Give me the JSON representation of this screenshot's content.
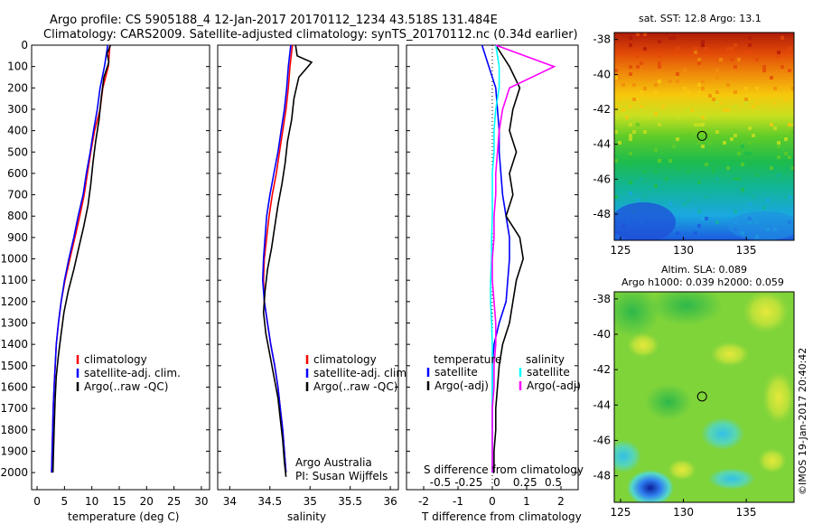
{
  "header": {
    "line1": "Argo profile: CS 5905188_4 12-Jan-2017 20170112_1234 43.518S 131.484E",
    "line2": "Climatology: CARS2009. Satellite-adjusted climatology: synTS_20170112.nc (0.34d earlier)"
  },
  "colors": {
    "climatology": "#ff0000",
    "satellite": "#0000ff",
    "argo": "#000000",
    "t_sat": "#0000ff",
    "s_sat": "#00ffff",
    "s_argo": "#ff00ff"
  },
  "chart_data": [
    {
      "type": "line",
      "panel": "temperature",
      "xlabel": "temperature (deg C)",
      "ylabel": "",
      "xlim": [
        -1,
        31.5
      ],
      "ylim": [
        2080,
        0
      ],
      "xticks": [
        0,
        5,
        10,
        15,
        20,
        25,
        30
      ],
      "yticks": [
        0,
        100,
        200,
        300,
        400,
        500,
        600,
        700,
        800,
        900,
        1000,
        1100,
        1200,
        1300,
        1400,
        1500,
        1600,
        1700,
        1800,
        1900,
        2000
      ],
      "series": [
        {
          "name": "climatology",
          "color": "#ff0000",
          "x": [
            13.3,
            13.0,
            12.0,
            11.5,
            10.5,
            9.8,
            9.2,
            8.6,
            7.8,
            6.9,
            6.0,
            5.1,
            4.4,
            3.9,
            3.5,
            3.3,
            3.1,
            2.95,
            2.85,
            2.75,
            2.65
          ],
          "y": [
            0,
            100,
            200,
            300,
            400,
            500,
            600,
            700,
            800,
            900,
            1000,
            1100,
            1200,
            1300,
            1400,
            1500,
            1600,
            1700,
            1800,
            1900,
            2000
          ]
        },
        {
          "name": "satellite-adj. clim.",
          "color": "#0000ff",
          "x": [
            12.9,
            12.3,
            11.5,
            11.0,
            10.3,
            9.7,
            9.0,
            8.4,
            7.5,
            6.7,
            5.8,
            5.0,
            4.4,
            3.9,
            3.5,
            3.3,
            3.1,
            2.95,
            2.85,
            2.75,
            2.65
          ],
          "y": [
            0,
            100,
            200,
            300,
            400,
            500,
            600,
            700,
            800,
            900,
            1000,
            1100,
            1200,
            1300,
            1400,
            1500,
            1600,
            1700,
            1800,
            1900,
            2000
          ]
        },
        {
          "name": "Argo(..raw -QC)",
          "color": "#000000",
          "x": [
            13.4,
            12.8,
            13.1,
            12.2,
            11.7,
            11.3,
            10.7,
            10.2,
            9.8,
            9.3,
            8.5,
            7.6,
            6.7,
            5.7,
            4.9,
            4.4,
            3.9,
            3.5,
            3.3,
            3.1,
            2.9
          ],
          "y": [
            0,
            40,
            80,
            150,
            250,
            350,
            450,
            550,
            650,
            750,
            850,
            950,
            1050,
            1150,
            1250,
            1350,
            1450,
            1550,
            1650,
            1800,
            2000
          ]
        }
      ],
      "legend": [
        "climatology",
        "satellite-adj. clim.",
        "Argo(..raw -QC)"
      ],
      "legend_position": "lower-right"
    },
    {
      "type": "line",
      "panel": "salinity",
      "xlabel": "salinity",
      "xlim": [
        33.85,
        36.1
      ],
      "ylim": [
        2080,
        0
      ],
      "xticks": [
        34,
        34.5,
        35,
        35.5,
        36
      ],
      "xticklabels": [
        "34",
        "34.5",
        "35",
        "35.5",
        "36"
      ],
      "series": [
        {
          "name": "climatology",
          "color": "#ff0000",
          "x": [
            34.78,
            34.75,
            34.73,
            34.7,
            34.66,
            34.62,
            34.58,
            34.53,
            34.49,
            34.46,
            34.43,
            34.42,
            34.43,
            34.47,
            34.51,
            34.56,
            34.6,
            34.63,
            34.66,
            34.68,
            34.7
          ],
          "y": [
            0,
            100,
            200,
            300,
            400,
            500,
            600,
            700,
            800,
            900,
            1000,
            1100,
            1200,
            1300,
            1400,
            1500,
            1600,
            1700,
            1800,
            1900,
            2000
          ]
        },
        {
          "name": "satellite-adj. clim.",
          "color": "#0000ff",
          "x": [
            34.76,
            34.73,
            34.71,
            34.68,
            34.64,
            34.6,
            34.55,
            34.5,
            34.46,
            34.44,
            34.42,
            34.41,
            34.43,
            34.47,
            34.51,
            34.56,
            34.6,
            34.63,
            34.66,
            34.68,
            34.7
          ],
          "y": [
            0,
            100,
            200,
            300,
            400,
            500,
            600,
            700,
            800,
            900,
            1000,
            1100,
            1200,
            1300,
            1400,
            1500,
            1600,
            1700,
            1800,
            1900,
            2000
          ]
        },
        {
          "name": "Argo(..raw -QC)",
          "color": "#000000",
          "x": [
            34.82,
            34.84,
            35.02,
            34.86,
            34.8,
            34.77,
            34.72,
            34.69,
            34.65,
            34.6,
            34.56,
            34.52,
            34.47,
            34.44,
            34.42,
            34.45,
            34.5,
            34.55,
            34.6,
            34.63,
            34.66,
            34.68,
            34.7
          ],
          "y": [
            0,
            50,
            80,
            150,
            250,
            350,
            450,
            550,
            650,
            750,
            850,
            950,
            1050,
            1150,
            1250,
            1350,
            1450,
            1550,
            1650,
            1750,
            1850,
            1950,
            2020
          ]
        }
      ],
      "legend": [
        "climatology",
        "satellite-adj. clim.",
        "Argo(..raw -QC)"
      ],
      "legend_position": "lower-right",
      "annotation": [
        "Argo Australia",
        "PI: Susan Wijffels"
      ]
    },
    {
      "type": "line",
      "panel": "differences",
      "xlabel": "T difference from climatology",
      "xlabel_top": "S difference from climatology",
      "xlim": [
        -2.5,
        2.5
      ],
      "ylim": [
        2080,
        0
      ],
      "xticks": [
        -2,
        -1,
        0,
        1,
        2
      ],
      "xticklabels": [
        "-2",
        "-1",
        "0",
        "1",
        "2"
      ],
      "sticks": [
        -0.5,
        -0.25,
        0,
        0.25,
        0.5
      ],
      "sticklabels": [
        "-0.5",
        "-0.25",
        "0",
        "0.25",
        "0.5"
      ],
      "series": [
        {
          "name": "temperature satellite",
          "color": "#0000ff",
          "x": [
            -0.3,
            -0.1,
            0.1,
            0.15,
            0.2,
            0.2,
            0.25,
            0.3,
            0.4,
            0.5,
            0.5,
            0.45,
            0.4,
            0.2,
            0.05,
            0.0,
            0.0,
            0.0,
            0.0,
            0.0,
            0.0
          ],
          "y": [
            0,
            100,
            200,
            300,
            400,
            500,
            600,
            700,
            800,
            900,
            1000,
            1100,
            1200,
            1300,
            1400,
            1500,
            1600,
            1700,
            1800,
            1900,
            2000
          ]
        },
        {
          "name": "temperature Argo(-adj)",
          "color": "#000000",
          "x": [
            0.1,
            0.5,
            0.8,
            0.6,
            0.5,
            0.7,
            0.5,
            0.6,
            0.4,
            0.8,
            0.9,
            0.7,
            0.6,
            0.5,
            0.3,
            0.2,
            0.15,
            0.1,
            0.1,
            0.05,
            0.05
          ],
          "y": [
            0,
            100,
            200,
            300,
            400,
            500,
            600,
            700,
            800,
            900,
            1000,
            1100,
            1200,
            1300,
            1400,
            1500,
            1600,
            1700,
            1800,
            1900,
            2000
          ]
        },
        {
          "name": "salinity satellite",
          "color": "#00ffff",
          "x": [
            0.1,
            0.2,
            0.2,
            0.1,
            0.05,
            0.05,
            0.0,
            0.0,
            0.0,
            -0.02,
            -0.02,
            -0.05,
            -0.05,
            -0.02,
            0.0,
            0.0,
            0.0,
            0.0,
            0.0,
            0.0,
            0.0
          ],
          "y": [
            0,
            100,
            200,
            300,
            400,
            500,
            600,
            700,
            800,
            900,
            1000,
            1100,
            1200,
            1300,
            1400,
            1500,
            1600,
            1700,
            1800,
            1900,
            2000
          ]
        },
        {
          "name": "salinity Argo(-adj)",
          "color": "#ff00ff",
          "x": [
            0.1,
            1.8,
            0.5,
            0.3,
            0.2,
            0.15,
            0.1,
            0.1,
            0.05,
            0.05,
            0.0,
            0.0,
            0.05,
            0.1,
            0.1,
            0.05,
            0.05,
            0.0,
            0.0,
            0.0,
            0.0
          ],
          "y": [
            0,
            100,
            200,
            300,
            400,
            500,
            600,
            700,
            800,
            900,
            1000,
            1100,
            1200,
            1300,
            1400,
            1500,
            1600,
            1700,
            1800,
            1900,
            2000
          ]
        }
      ],
      "legend": {
        "temperature_header": "temperature",
        "salinity_header": "salinity",
        "entries": [
          {
            "label": "satellite",
            "color": "#0000ff"
          },
          {
            "label": "Argo(-adj)",
            "color": "#000000"
          },
          {
            "label": "satellite",
            "color": "#00ffff"
          },
          {
            "label": "Argo(-adj)",
            "color": "#ff00ff"
          }
        ]
      }
    },
    {
      "type": "heatmap",
      "panel": "sst-map",
      "title": "sat. SST: 12.8 Argo: 13.1",
      "xlim": [
        124.5,
        138.8
      ],
      "ylim": [
        -49.5,
        -37.6
      ],
      "xticks": [
        125,
        130,
        135
      ],
      "yticks": [
        -38,
        -40,
        -42,
        -44,
        -46,
        -48
      ],
      "marker": {
        "lon": 131.484,
        "lat": -43.518
      }
    },
    {
      "type": "heatmap",
      "panel": "sla-map",
      "title": "Altim. SLA: 0.089",
      "subtitle": "Argo h1000: 0.039 h2000: 0.059",
      "xlim": [
        124.5,
        138.8
      ],
      "ylim": [
        -49.5,
        -37.6
      ],
      "xticks": [
        125,
        130,
        135
      ],
      "yticks": [
        -38,
        -40,
        -42,
        -44,
        -46,
        -48
      ],
      "marker": {
        "lon": 131.484,
        "lat": -43.518
      }
    }
  ],
  "credit": "©IMOS 19-Jan-2017 20:40:42"
}
